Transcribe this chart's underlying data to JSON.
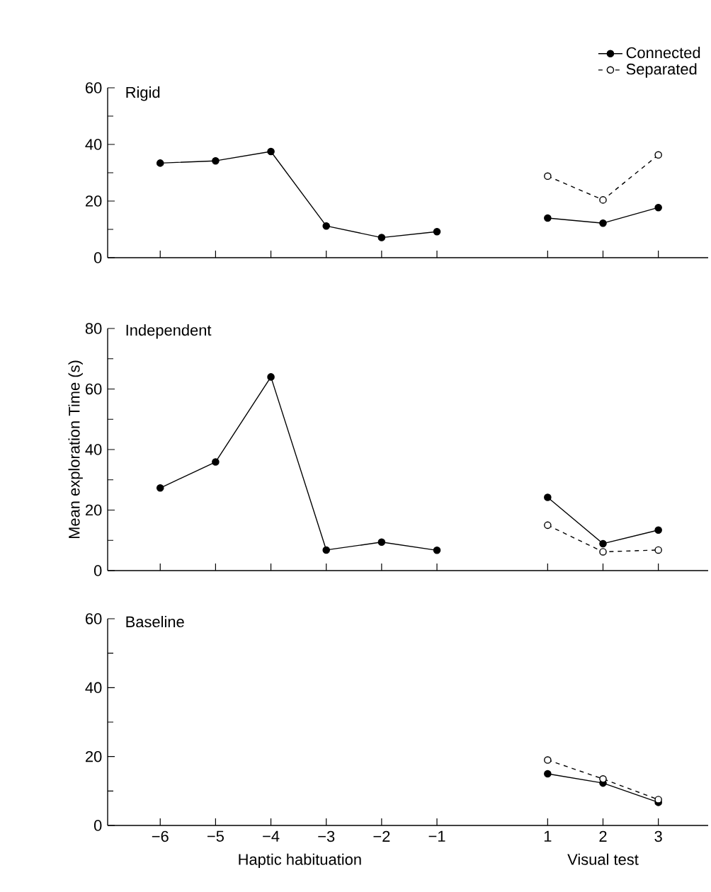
{
  "chart_data": [
    {
      "type": "line",
      "title": "Rigid",
      "categories": [
        "−6",
        "−5",
        "−4",
        "−3",
        "−2",
        "−1",
        null,
        "1",
        "2",
        "3"
      ],
      "legend": "top right",
      "marker": "circle",
      "tick_labels": "y",
      "ylim": [
        0,
        60
      ],
      "yticks": [
        0,
        20,
        40,
        60
      ],
      "series": [
        {
          "name": "Connected",
          "color": "#000000",
          "line_style": "solid",
          "values": [
            33.4,
            34.2,
            37.5,
            11.2,
            7.1,
            9.2,
            null,
            14.0,
            12.2,
            17.7
          ]
        },
        {
          "name": "Separated",
          "color": "#000000",
          "line_style": "dashed",
          "values": [
            null,
            null,
            null,
            null,
            null,
            null,
            null,
            28.8,
            20.4,
            36.3
          ]
        }
      ]
    },
    {
      "type": "line",
      "title": "Independent",
      "ylabel": "Mean exploration Time (s)",
      "categories": [
        "−6",
        "−5",
        "−4",
        "−3",
        "−2",
        "−1",
        null,
        "1",
        "2",
        "3"
      ],
      "marker": "circle",
      "tick_labels": "y",
      "ylim": [
        0,
        80
      ],
      "yticks": [
        0,
        20,
        40,
        60,
        80
      ],
      "series": [
        {
          "color": "#000000",
          "line_style": "solid",
          "values": [
            27.3,
            35.9,
            64.0,
            6.8,
            9.4,
            6.7,
            null,
            24.2,
            8.9,
            13.4
          ]
        },
        {
          "color": "#000000",
          "line_style": "dashed",
          "values": [
            null,
            null,
            null,
            null,
            null,
            null,
            null,
            15.0,
            6.2,
            6.8
          ]
        }
      ]
    },
    {
      "type": "line",
      "title": "Baseline",
      "xlabel": "Haptic habituation",
      "annotations": [
        "Visual test"
      ],
      "categories": [
        "−6",
        "−5",
        "−4",
        "−3",
        "−2",
        "−1",
        null,
        "1",
        "2",
        "3"
      ],
      "marker": "circle",
      "ylim": [
        0,
        60
      ],
      "yticks": [
        0,
        20,
        40,
        60
      ],
      "series": [
        {
          "color": "#000000",
          "line_style": "solid",
          "values": [
            null,
            null,
            null,
            null,
            null,
            null,
            null,
            15.0,
            12.3,
            6.7
          ]
        },
        {
          "color": "#000000",
          "line_style": "dashed",
          "values": [
            null,
            null,
            null,
            null,
            null,
            null,
            null,
            19.0,
            13.5,
            7.5
          ]
        }
      ]
    }
  ]
}
